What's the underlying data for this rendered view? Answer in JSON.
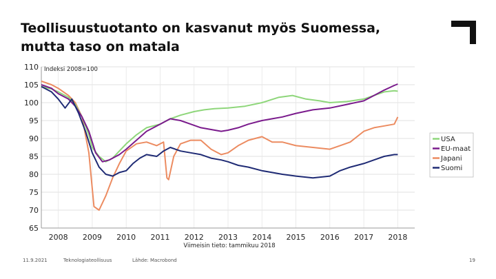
{
  "title": {
    "line1": "Teollisuustuotanto on kasvanut myös Suomessa,",
    "line2": "mutta taso on matala"
  },
  "footer": {
    "date": "11.9.2021",
    "organization": "Teknologiateollisuus",
    "source": "Lähde: Macrobond",
    "page": "19"
  },
  "logo_icon": "corner-bracket-icon",
  "colors": {
    "USA": "#8ed67a",
    "EU-maat": "#7a1a8c",
    "Japani": "#ec8b60",
    "Suomi": "#1e2a74"
  },
  "chart_data": {
    "type": "line",
    "index_label": "Indeksi 2008=100",
    "note": "Viimeisin tieto: tammikuu 2018",
    "ylim": [
      65,
      110
    ],
    "yticks": [
      "110",
      "105",
      "100",
      "95",
      "90",
      "85",
      "80",
      "75",
      "70",
      "65"
    ],
    "xlim": [
      2007.5,
      2018.5
    ],
    "xticks": [
      "2008",
      "2009",
      "2010",
      "2011",
      "2012",
      "2013",
      "2014",
      "2015",
      "2016",
      "2017",
      "2018"
    ],
    "grid": true,
    "legend_position": "right",
    "series": [
      {
        "name": "USA",
        "x": [
          2007.5,
          2007.8,
          2008.0,
          2008.3,
          2008.5,
          2008.7,
          2008.9,
          2009.0,
          2009.2,
          2009.4,
          2009.6,
          2009.8,
          2010.0,
          2010.3,
          2010.6,
          2011.0,
          2011.3,
          2011.6,
          2012.0,
          2012.3,
          2012.6,
          2013.0,
          2013.5,
          2014.0,
          2014.5,
          2014.9,
          2015.3,
          2015.7,
          2016.0,
          2016.5,
          2017.0,
          2017.3,
          2017.6,
          2017.9,
          2018.0
        ],
        "values": [
          104.5,
          103.8,
          103.0,
          101.5,
          99.5,
          96.0,
          91.0,
          87.5,
          85.0,
          83.5,
          84.5,
          86.5,
          88.5,
          91.0,
          93.0,
          94.0,
          95.5,
          96.5,
          97.5,
          98.0,
          98.3,
          98.5,
          99.0,
          100.0,
          101.5,
          102.0,
          101.0,
          100.5,
          100.0,
          100.3,
          101.0,
          102.0,
          103.0,
          103.3,
          103.2
        ]
      },
      {
        "name": "EU-maat",
        "x": [
          2007.5,
          2007.8,
          2008.0,
          2008.3,
          2008.5,
          2008.7,
          2008.9,
          2009.1,
          2009.3,
          2009.5,
          2009.8,
          2010.0,
          2010.3,
          2010.6,
          2011.0,
          2011.3,
          2011.6,
          2011.9,
          2012.2,
          2012.5,
          2012.8,
          2013.0,
          2013.3,
          2013.6,
          2014.0,
          2014.3,
          2014.6,
          2015.0,
          2015.5,
          2016.0,
          2016.5,
          2017.0,
          2017.3,
          2017.6,
          2017.9,
          2018.0
        ],
        "values": [
          105.0,
          104.0,
          102.5,
          101.0,
          99.0,
          96.0,
          92.0,
          86.0,
          83.5,
          84.0,
          85.5,
          87.0,
          89.5,
          92.0,
          94.0,
          95.5,
          95.0,
          94.0,
          93.0,
          92.5,
          92.0,
          92.3,
          93.0,
          94.0,
          95.0,
          95.5,
          96.0,
          97.0,
          98.0,
          98.5,
          99.5,
          100.5,
          102.0,
          103.5,
          104.8,
          105.2
        ]
      },
      {
        "name": "Japani",
        "x": [
          2007.5,
          2007.8,
          2008.0,
          2008.3,
          2008.5,
          2008.7,
          2008.9,
          2009.05,
          2009.2,
          2009.4,
          2009.6,
          2009.8,
          2010.0,
          2010.3,
          2010.6,
          2010.9,
          2011.1,
          2011.2,
          2011.25,
          2011.4,
          2011.6,
          2011.9,
          2012.2,
          2012.5,
          2012.8,
          2013.0,
          2013.3,
          2013.6,
          2014.0,
          2014.3,
          2014.6,
          2015.0,
          2015.5,
          2016.0,
          2016.3,
          2016.6,
          2017.0,
          2017.3,
          2017.6,
          2017.9,
          2018.0
        ],
        "values": [
          106.0,
          105.0,
          104.0,
          102.0,
          100.0,
          96.0,
          86.0,
          71.0,
          70.0,
          74.0,
          79.0,
          83.0,
          86.5,
          88.5,
          89.0,
          88.0,
          89.0,
          79.0,
          78.5,
          85.0,
          88.5,
          89.5,
          89.5,
          87.0,
          85.5,
          86.0,
          88.0,
          89.5,
          90.5,
          89.0,
          89.0,
          88.0,
          87.5,
          87.0,
          88.0,
          89.0,
          92.0,
          93.0,
          93.5,
          94.0,
          96.0
        ]
      },
      {
        "name": "Suomi",
        "x": [
          2007.5,
          2007.8,
          2008.0,
          2008.2,
          2008.4,
          2008.6,
          2008.8,
          2009.0,
          2009.2,
          2009.4,
          2009.6,
          2009.8,
          2010.0,
          2010.2,
          2010.4,
          2010.6,
          2010.9,
          2011.1,
          2011.3,
          2011.6,
          2011.9,
          2012.2,
          2012.5,
          2012.8,
          2013.0,
          2013.3,
          2013.6,
          2014.0,
          2014.3,
          2014.6,
          2015.0,
          2015.5,
          2016.0,
          2016.3,
          2016.6,
          2017.0,
          2017.3,
          2017.6,
          2017.9,
          2018.0
        ],
        "values": [
          104.5,
          103.0,
          101.0,
          98.5,
          101.0,
          97.0,
          92.0,
          86.0,
          82.0,
          80.0,
          79.5,
          80.5,
          81.0,
          83.0,
          84.5,
          85.5,
          85.0,
          86.5,
          87.5,
          86.5,
          86.0,
          85.5,
          84.5,
          84.0,
          83.5,
          82.5,
          82.0,
          81.0,
          80.5,
          80.0,
          79.5,
          79.0,
          79.5,
          81.0,
          82.0,
          83.0,
          84.0,
          85.0,
          85.5,
          85.5
        ]
      }
    ]
  }
}
